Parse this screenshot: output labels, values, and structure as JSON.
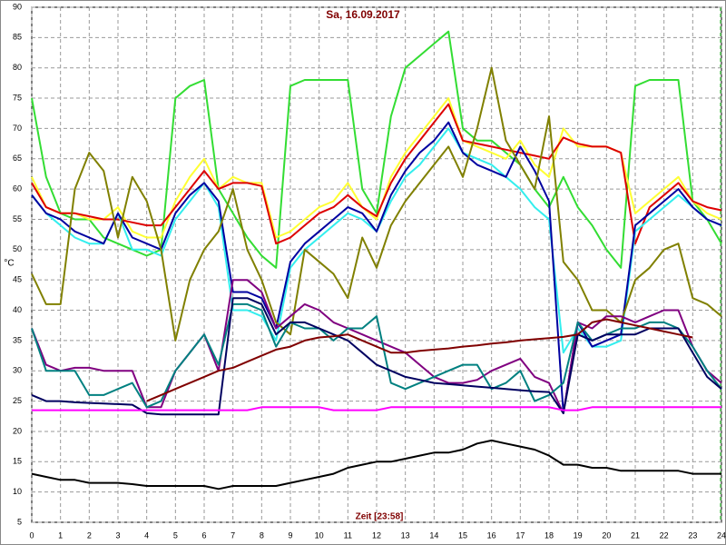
{
  "chart_data": {
    "type": "line",
    "title": "Sa, 16.09.2017",
    "x_label": "Zeit [23:58]",
    "y_label": "°C",
    "xlim": [
      0,
      24
    ],
    "ylim": [
      5,
      90
    ],
    "grid": true,
    "xticks": [
      0,
      1,
      2,
      3,
      4,
      5,
      6,
      7,
      8,
      9,
      10,
      11,
      12,
      13,
      14,
      15,
      16,
      17,
      18,
      19,
      20,
      21,
      22,
      23,
      24
    ],
    "yticks": [
      5,
      10,
      15,
      20,
      25,
      30,
      35,
      40,
      45,
      50,
      55,
      60,
      65,
      70,
      75,
      80,
      85,
      90
    ],
    "x": [
      0,
      0.5,
      1,
      1.5,
      2,
      2.5,
      3,
      3.5,
      4,
      4.5,
      5,
      5.5,
      6,
      6.5,
      7,
      7.5,
      8,
      8.5,
      9,
      9.5,
      10,
      10.5,
      11,
      11.5,
      12,
      12.5,
      13,
      13.5,
      14,
      14.5,
      15,
      15.5,
      16,
      16.5,
      17,
      17.5,
      18,
      18.5,
      19,
      19.5,
      20,
      20.5,
      21,
      21.5,
      22,
      22.5,
      23,
      23.5,
      24
    ],
    "series": [
      {
        "color": "#33dd33",
        "values": [
          75,
          62,
          56,
          55,
          55,
          52,
          51,
          50,
          49,
          50,
          75,
          77,
          78,
          60,
          56,
          52,
          49,
          47,
          77,
          78,
          78,
          78,
          78,
          60,
          56,
          72,
          80,
          82,
          84,
          86,
          70,
          68,
          68,
          66,
          64,
          60,
          57,
          62,
          57,
          54,
          50,
          47,
          77,
          78,
          78,
          78,
          58,
          55,
          51
        ]
      },
      {
        "color": "#ffff33",
        "values": [
          62,
          57,
          56,
          56,
          55,
          55,
          57,
          53,
          52,
          52,
          58,
          62,
          65,
          60,
          62,
          61,
          61,
          52,
          53,
          55,
          57,
          58,
          61,
          57,
          55,
          62,
          66,
          69,
          72,
          75,
          68,
          67,
          66,
          65,
          68,
          64,
          62,
          70,
          67,
          67,
          67,
          66,
          56,
          58,
          60,
          62,
          58,
          56,
          55
        ]
      },
      {
        "color": "#dd0000",
        "values": [
          61,
          57,
          56,
          56,
          55.5,
          55,
          55,
          54.5,
          54,
          54,
          57,
          60,
          63,
          60,
          61,
          61,
          60.5,
          51,
          52,
          54,
          56,
          57,
          59,
          57,
          55.5,
          61,
          65,
          68,
          71,
          74,
          68,
          67.5,
          67,
          66.5,
          66,
          65.5,
          65,
          68.5,
          67.5,
          67,
          67,
          66,
          51,
          57,
          59,
          61,
          58,
          57,
          56.5
        ]
      },
      {
        "color": "#33eeee",
        "values": [
          59,
          56,
          54,
          52,
          51,
          51,
          56,
          50,
          50,
          49,
          55,
          58,
          61,
          57,
          40,
          40,
          39,
          35,
          47,
          50,
          52,
          54,
          56,
          55,
          53,
          58,
          62,
          64,
          67,
          70,
          66,
          65,
          64,
          62,
          60,
          57,
          55,
          33,
          37,
          34,
          34,
          35,
          53,
          55,
          57,
          59,
          57,
          55,
          54
        ]
      },
      {
        "color": "#0000a0",
        "values": [
          59,
          56,
          55,
          53,
          52,
          51,
          56,
          52,
          51,
          50,
          56,
          59,
          61,
          58,
          43,
          43,
          42,
          37,
          48,
          51,
          53,
          55,
          57,
          56,
          53,
          59,
          63,
          66,
          68,
          71,
          66,
          64,
          63,
          62,
          67,
          63,
          58,
          23,
          38,
          34,
          35,
          36,
          54,
          56,
          58,
          60,
          57,
          55,
          54
        ]
      },
      {
        "color": "#808000",
        "values": [
          46,
          41,
          41,
          60,
          66,
          63,
          52,
          62,
          58,
          50,
          35,
          45,
          50,
          53,
          60,
          50,
          45,
          38,
          36,
          50,
          48,
          46,
          42,
          52,
          47,
          54,
          58,
          61,
          64,
          67,
          62,
          70,
          80,
          68,
          64,
          60,
          72,
          48,
          45,
          40,
          40,
          38,
          45,
          47,
          50,
          51,
          42,
          41,
          39
        ]
      },
      {
        "color": "#800080",
        "values": [
          37,
          31,
          30,
          30.5,
          30.5,
          30,
          30,
          30,
          24,
          24,
          30,
          33,
          36,
          30,
          45,
          45,
          43,
          37,
          39,
          41,
          40,
          38,
          37,
          36,
          35,
          34,
          33,
          31,
          29,
          28,
          28,
          28.5,
          30,
          31,
          32,
          29,
          28,
          23,
          38,
          37,
          39,
          39,
          38,
          39,
          40,
          40,
          34,
          30,
          28
        ]
      },
      {
        "color": "#008080",
        "values": [
          37,
          30,
          30,
          30,
          26,
          26,
          27,
          28,
          24,
          25,
          30,
          33,
          36,
          31,
          41,
          41,
          40,
          34,
          38,
          37,
          37,
          35,
          37,
          37,
          39,
          28,
          27,
          28,
          29,
          30,
          31,
          31,
          27,
          28,
          30,
          25,
          26,
          28,
          38,
          35,
          36,
          37,
          37,
          38,
          38,
          37,
          34,
          30,
          27
        ]
      },
      {
        "color": "#000060",
        "values": [
          26,
          25,
          25,
          24.8,
          24.7,
          24.6,
          24.5,
          24.4,
          23,
          22.8,
          22.8,
          22.8,
          22.8,
          22.8,
          42,
          42,
          41,
          36,
          38,
          38,
          37,
          36,
          35,
          33,
          31,
          30,
          29,
          28.5,
          28,
          27.8,
          27.6,
          27.4,
          27.2,
          27,
          26.8,
          26.6,
          26.5,
          23,
          36,
          35,
          36,
          36,
          36,
          37,
          37,
          37,
          33,
          29,
          27
        ]
      },
      {
        "color": "#800000",
        "values": [
          null,
          null,
          null,
          null,
          null,
          null,
          null,
          null,
          25,
          26,
          27,
          28,
          29,
          30,
          30.5,
          31.5,
          32.5,
          33.5,
          34,
          35,
          35.5,
          35.7,
          36,
          35,
          34,
          33,
          33,
          33.3,
          33.5,
          33.7,
          34,
          34.2,
          34.5,
          34.7,
          35,
          35.2,
          35.4,
          35.6,
          36,
          38,
          38.5,
          38,
          37.5,
          37,
          36.5,
          36,
          35.5,
          null,
          null
        ]
      },
      {
        "color": "#ff00ff",
        "values": [
          23.5,
          23.5,
          23.5,
          23.5,
          23.5,
          23.5,
          23.5,
          23.5,
          23.5,
          23.5,
          23.5,
          23.5,
          23.5,
          23.5,
          23.5,
          23.5,
          24,
          24,
          24,
          24,
          24,
          23.5,
          23.5,
          23.5,
          23.5,
          24,
          24,
          24,
          24,
          24,
          24,
          24,
          24,
          24,
          24,
          24,
          24,
          23.5,
          23.5,
          24,
          24,
          24,
          24,
          24,
          24,
          24,
          24,
          24,
          24
        ]
      },
      {
        "color": "#000000",
        "values": [
          13,
          12.5,
          12,
          12,
          11.5,
          11.5,
          11.5,
          11.3,
          11,
          11,
          11,
          11,
          11,
          10.5,
          11,
          11,
          11,
          11,
          11.5,
          12,
          12.5,
          13,
          14,
          14.5,
          15,
          15,
          15.5,
          16,
          16.5,
          16.5,
          17,
          18,
          18.5,
          18,
          17.5,
          17,
          16,
          14.5,
          14.5,
          14,
          14,
          13.5,
          13.5,
          13.5,
          13.5,
          13.5,
          13,
          13,
          13
        ]
      }
    ]
  }
}
